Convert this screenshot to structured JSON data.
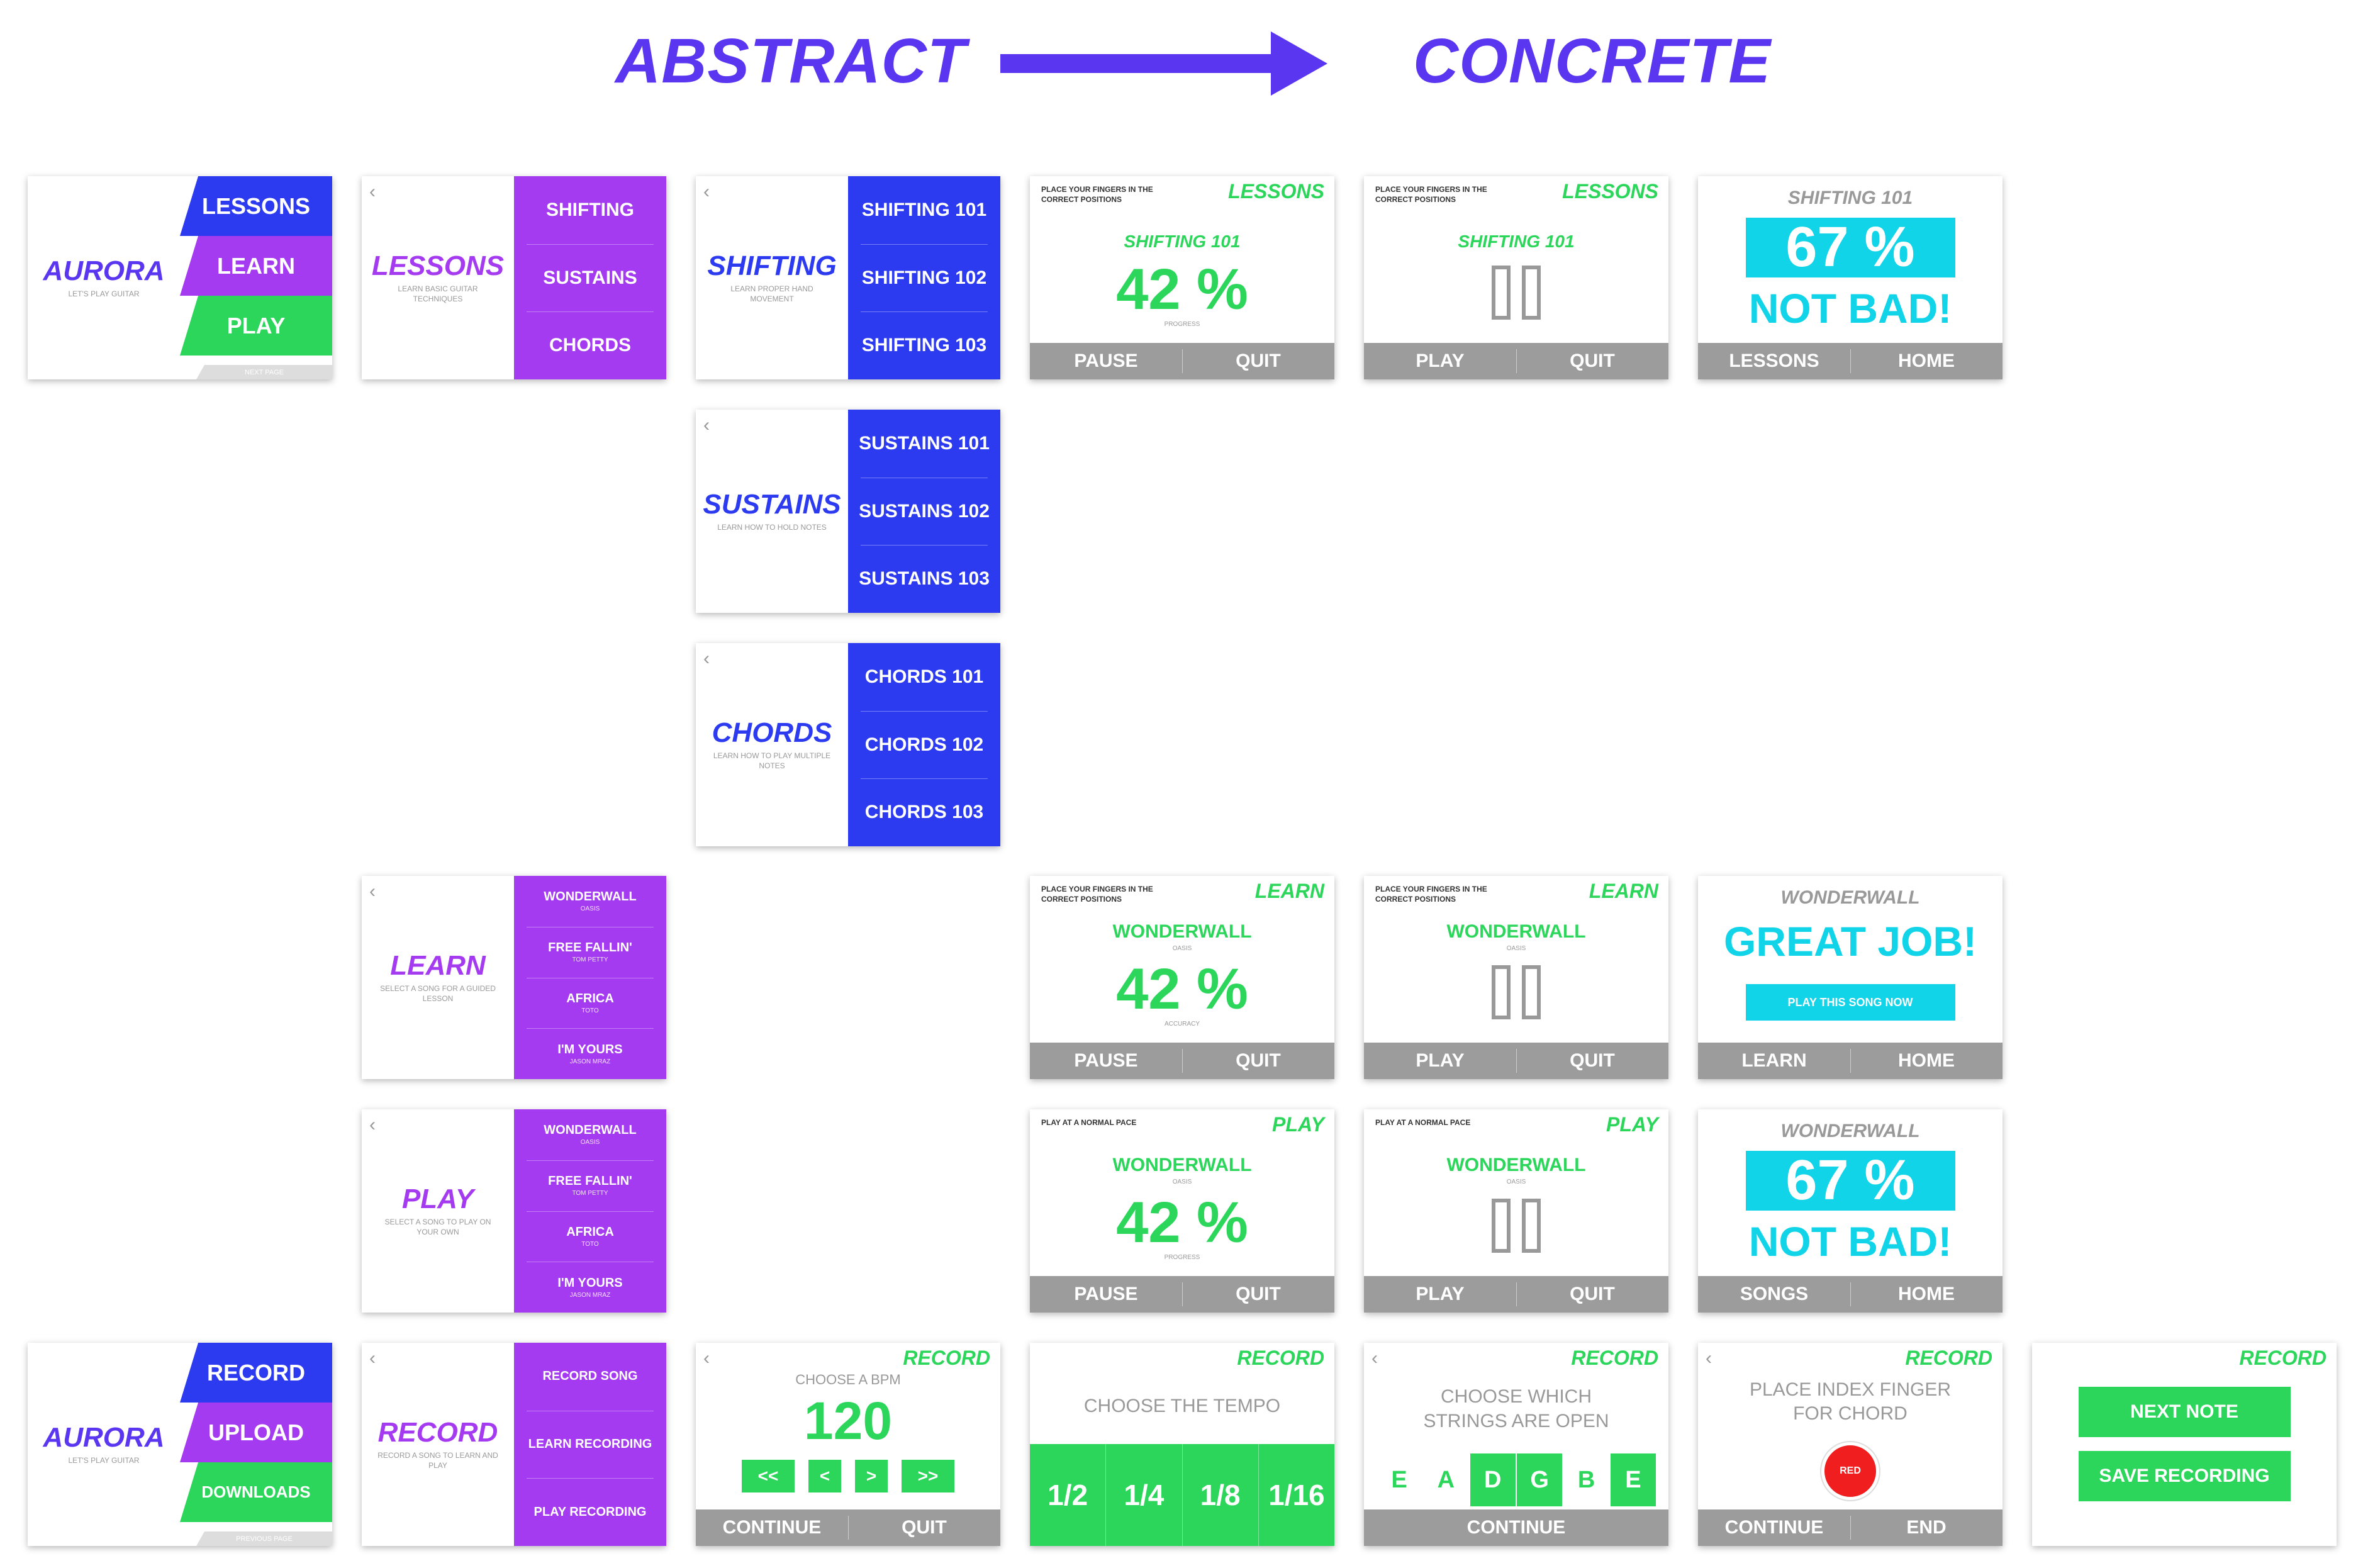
{
  "header": {
    "abstract": "ABSTRACT",
    "concrete": "CONCRETE"
  },
  "colors": {
    "primary": "#5a36f0",
    "blue": "#2d3bf0",
    "purple": "#a53bf0",
    "green": "#2bd65a",
    "cyan": "#11d4e8",
    "gray": "#9c9c9c"
  },
  "aurora_main": {
    "title": "AURORA",
    "subtitle": "LET'S PLAY GUITAR",
    "items": [
      "LESSONS",
      "LEARN",
      "PLAY"
    ],
    "footer": "NEXT PAGE"
  },
  "aurora_record": {
    "title": "AURORA",
    "subtitle": "LET'S PLAY GUITAR",
    "items": [
      "RECORD",
      "UPLOAD",
      "DOWNLOADS"
    ],
    "footer": "PREVIOUS PAGE"
  },
  "lessons_menu": {
    "title": "LESSONS",
    "subtitle": "LEARN BASIC GUITAR TECHNIQUES",
    "items": [
      "SHIFTING",
      "SUSTAINS",
      "CHORDS"
    ]
  },
  "shifting_menu": {
    "title": "SHIFTING",
    "subtitle": "LEARN PROPER HAND MOVEMENT",
    "items": [
      "SHIFTING 101",
      "SHIFTING 102",
      "SHIFTING 103"
    ]
  },
  "sustains_menu": {
    "title": "SUSTAINS",
    "subtitle": "LEARN HOW TO HOLD NOTES",
    "items": [
      "SUSTAINS 101",
      "SUSTAINS 102",
      "SUSTAINS 103"
    ]
  },
  "chords_menu": {
    "title": "CHORDS",
    "subtitle": "LEARN HOW TO PLAY MULTIPLE NOTES",
    "items": [
      "CHORDS 101",
      "CHORDS 102",
      "CHORDS 103"
    ]
  },
  "learn_menu": {
    "title": "LEARN",
    "subtitle": "SELECT A SONG FOR A GUIDED LESSON",
    "songs": [
      {
        "t": "WONDERWALL",
        "a": "OASIS"
      },
      {
        "t": "FREE FALLIN'",
        "a": "TOM PETTY"
      },
      {
        "t": "AFRICA",
        "a": "TOTO"
      },
      {
        "t": "I'M YOURS",
        "a": "JASON MRAZ"
      }
    ]
  },
  "play_menu": {
    "title": "PLAY",
    "subtitle": "SELECT A SONG TO PLAY ON YOUR OWN",
    "songs": [
      {
        "t": "WONDERWALL",
        "a": "OASIS"
      },
      {
        "t": "FREE FALLIN'",
        "a": "TOM PETTY"
      },
      {
        "t": "AFRICA",
        "a": "TOTO"
      },
      {
        "t": "I'M YOURS",
        "a": "JASON MRAZ"
      }
    ]
  },
  "record_menu": {
    "title": "RECORD",
    "subtitle": "RECORD A SONG TO LEARN AND PLAY",
    "items": [
      "RECORD SONG",
      "LEARN RECORDING",
      "PLAY RECORDING"
    ]
  },
  "lesson_active": {
    "instruction": "PLACE YOUR FINGERS IN THE CORRECT POSITIONS",
    "tag": "LESSONS",
    "name": "SHIFTING 101",
    "value": "42 %",
    "label": "PROGRESS",
    "buttons": [
      "PAUSE",
      "QUIT"
    ]
  },
  "lesson_paused": {
    "instruction": "PLACE YOUR FINGERS IN THE CORRECT POSITIONS",
    "tag": "LESSONS",
    "name": "SHIFTING 101",
    "buttons": [
      "PLAY",
      "QUIT"
    ]
  },
  "lesson_result": {
    "name": "SHIFTING 101",
    "value": "67 %",
    "msg": "NOT BAD!",
    "buttons": [
      "LESSONS",
      "HOME"
    ]
  },
  "learn_active": {
    "instruction": "PLACE YOUR FINGERS IN THE CORRECT POSITIONS",
    "tag": "LEARN",
    "name": "WONDERWALL",
    "artist": "OASIS",
    "value": "42 %",
    "label": "ACCURACY",
    "buttons": [
      "PAUSE",
      "QUIT"
    ]
  },
  "learn_paused": {
    "instruction": "PLACE YOUR FINGERS IN THE CORRECT POSITIONS",
    "tag": "LEARN",
    "name": "WONDERWALL",
    "artist": "OASIS",
    "buttons": [
      "PLAY",
      "QUIT"
    ]
  },
  "learn_result": {
    "name": "WONDERWALL",
    "msg": "GREAT JOB!",
    "cta": "PLAY THIS SONG NOW",
    "buttons": [
      "LEARN",
      "HOME"
    ]
  },
  "play_active": {
    "instruction": "PLAY AT A NORMAL PACE",
    "tag": "PLAY",
    "name": "WONDERWALL",
    "artist": "OASIS",
    "value": "42 %",
    "label": "PROGRESS",
    "buttons": [
      "PAUSE",
      "QUIT"
    ]
  },
  "play_paused": {
    "instruction": "PLAY AT A NORMAL PACE",
    "tag": "PLAY",
    "name": "WONDERWALL",
    "artist": "OASIS",
    "buttons": [
      "PLAY",
      "QUIT"
    ]
  },
  "play_result": {
    "name": "WONDERWALL",
    "value": "67 %",
    "msg": "NOT BAD!",
    "buttons": [
      "SONGS",
      "HOME"
    ]
  },
  "rec_bpm": {
    "tag": "RECORD",
    "label": "CHOOSE A BPM",
    "value": "120",
    "controls": [
      "<<",
      "<",
      ">",
      ">>"
    ],
    "buttons": [
      "CONTINUE",
      "QUIT"
    ]
  },
  "rec_tempo": {
    "tag": "RECORD",
    "label": "CHOOSE THE TEMPO",
    "options": [
      "1/2",
      "1/4",
      "1/8",
      "1/16"
    ]
  },
  "rec_strings": {
    "tag": "RECORD",
    "label": "CHOOSE WHICH STRINGS ARE OPEN",
    "strings": [
      {
        "s": "E",
        "on": false
      },
      {
        "s": "A",
        "on": false
      },
      {
        "s": "D",
        "on": true
      },
      {
        "s": "G",
        "on": true
      },
      {
        "s": "B",
        "on": false
      },
      {
        "s": "E",
        "on": true
      }
    ],
    "button": "CONTINUE"
  },
  "rec_finger": {
    "tag": "RECORD",
    "label": "PLACE INDEX FINGER FOR CHORD",
    "dot": "RED",
    "buttons": [
      "CONTINUE",
      "END"
    ]
  },
  "rec_save": {
    "tag": "RECORD",
    "buttons": [
      "NEXT NOTE",
      "SAVE RECORDING"
    ]
  }
}
